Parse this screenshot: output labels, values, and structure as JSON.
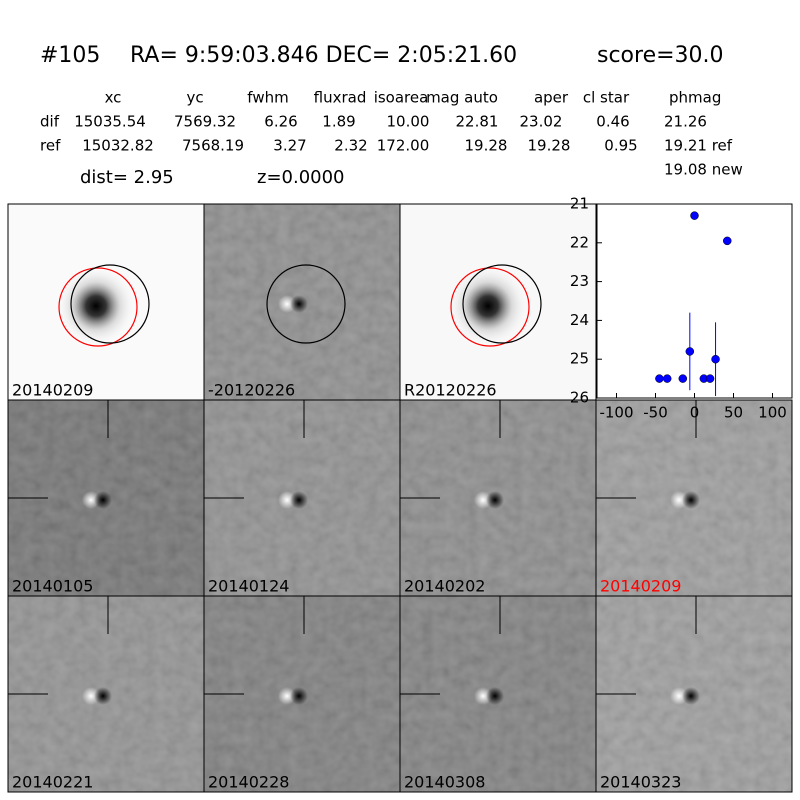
{
  "header": {
    "id": "#105",
    "coords": "RA= 9:59:03.846 DEC= 2:05:21.60",
    "score": "score=30.0"
  },
  "table": {
    "columns": [
      "xc",
      "yc",
      "fwhm",
      "fluxrad",
      "isoarea",
      "mag auto",
      "aper",
      "cl star",
      "phmag"
    ],
    "rows": [
      [
        "dif",
        "15035.54",
        "7569.32",
        "6.26",
        "1.89",
        "10.00",
        "22.81",
        "23.02",
        "0.46",
        "21.26"
      ],
      [
        "ref",
        "15032.82",
        "7568.19",
        "3.27",
        "2.32",
        "172.00",
        "19.28",
        "19.28",
        "0.95",
        "19.21 ref"
      ]
    ],
    "extra": "19.08 new"
  },
  "dist": "dist=  2.95",
  "z": "z=0.0000",
  "panels": [
    {
      "label": "20140209",
      "color": "#000000"
    },
    {
      "label": "-20120226",
      "color": "#000000"
    },
    {
      "label": "R20120226",
      "color": "#000000"
    },
    {
      "label": "20140105",
      "color": "#000000"
    },
    {
      "label": "20140124",
      "color": "#000000"
    },
    {
      "label": "20140202",
      "color": "#000000"
    },
    {
      "label": "20140209",
      "color": "#ff0000"
    },
    {
      "label": "20140221",
      "color": "#000000"
    },
    {
      "label": "20140228",
      "color": "#000000"
    },
    {
      "label": "20140308",
      "color": "#000000"
    },
    {
      "label": "20140323",
      "color": "#000000"
    }
  ],
  "chart_data": {
    "type": "scatter",
    "color": "#0000ff",
    "x": [
      -45,
      -35,
      -15,
      -6,
      0,
      12,
      20,
      27,
      42
    ],
    "values": [
      25.5,
      25.5,
      25.5,
      24.8,
      21.3,
      25.5,
      25.5,
      25.0,
      21.95
    ],
    "err": [
      0,
      0,
      0,
      1.0,
      0.05,
      0,
      0,
      0.95,
      0.08
    ],
    "xlim": [
      -125,
      125
    ],
    "ylim": [
      26,
      21
    ],
    "xticks": [
      -100,
      -50,
      0,
      50,
      100
    ],
    "yticks": [
      21,
      22,
      23,
      24,
      25,
      26
    ]
  }
}
